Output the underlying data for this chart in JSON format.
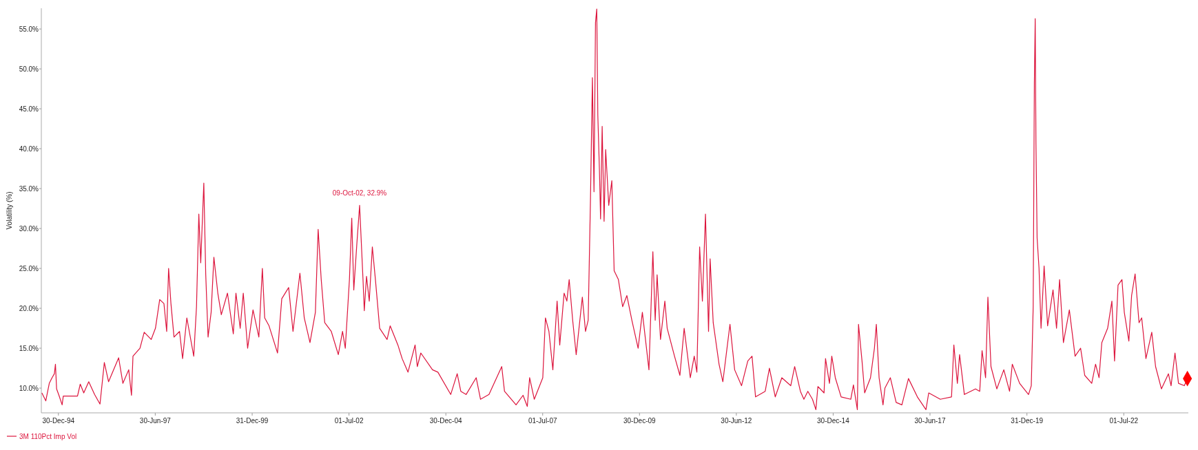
{
  "chart_data": {
    "type": "line",
    "ylabel": "Volatility (%)",
    "xlim": [
      "1994-07-22",
      "2024-03-01"
    ],
    "ylim": [
      6.9,
      57.6
    ],
    "yticks": [
      {
        "value": 10,
        "label": "10.0%"
      },
      {
        "value": 15,
        "label": "15.0%"
      },
      {
        "value": 20,
        "label": "20.0%"
      },
      {
        "value": 25,
        "label": "25.0%"
      },
      {
        "value": 30,
        "label": "30.0%"
      },
      {
        "value": 35,
        "label": "35.0%"
      },
      {
        "value": 40,
        "label": "40.0%"
      },
      {
        "value": 45,
        "label": "45.0%"
      },
      {
        "value": 50,
        "label": "50.0%"
      },
      {
        "value": 55,
        "label": "55.0%"
      }
    ],
    "xticks": [
      {
        "value": "1994-12-30",
        "label": "30-Dec-94"
      },
      {
        "value": "1997-06-30",
        "label": "30-Jun-97"
      },
      {
        "value": "1999-12-31",
        "label": "31-Dec-99"
      },
      {
        "value": "2002-07-01",
        "label": "01-Jul-02"
      },
      {
        "value": "2004-12-30",
        "label": "30-Dec-04"
      },
      {
        "value": "2007-07-01",
        "label": "01-Jul-07"
      },
      {
        "value": "2009-12-30",
        "label": "30-Dec-09"
      },
      {
        "value": "2012-06-30",
        "label": "30-Jun-12"
      },
      {
        "value": "2014-12-30",
        "label": "30-Dec-14"
      },
      {
        "value": "2017-06-30",
        "label": "30-Jun-17"
      },
      {
        "value": "2019-12-31",
        "label": "31-Dec-19"
      },
      {
        "value": "2022-07-01",
        "label": "01-Jul-22"
      }
    ],
    "grid": false,
    "legend": "bottom left",
    "line_style": "solid",
    "annotations": [
      {
        "text": "09-Oct-02, 32.9%",
        "x": "2002-10-09",
        "y": 32.9
      }
    ],
    "series": [
      {
        "name": "3M 110Pct Imp Vol",
        "color": "#dc143c",
        "marker": "none",
        "x": [
          "1994-07-27",
          "1994-09-02",
          "1994-09-20",
          "1994-10-05",
          "1994-10-31",
          "1994-11-22",
          "1994-12-02",
          "1994-12-13",
          "1995-01-04",
          "1995-02-03",
          "1995-02-14",
          "1995-06-28",
          "1995-07-24",
          "1995-08-26",
          "1995-10-12",
          "1995-12-06",
          "1996-01-26",
          "1996-03-07",
          "1996-04-16",
          "1996-07-20",
          "1996-08-29",
          "1996-10-23",
          "1996-11-18",
          "1996-12-02",
          "1997-02-06",
          "1997-03-18",
          "1997-05-23",
          "1997-07-02",
          "1997-08-11",
          "1997-09-20",
          "1997-10-16",
          "1997-11-03",
          "1997-11-25",
          "1997-12-24",
          "1998-02-14",
          "1998-03-15",
          "1998-04-24",
          "1998-06-28",
          "1998-07-24",
          "1998-08-15",
          "1998-09-02",
          "1998-10-01",
          "1998-10-19",
          "1998-11-10",
          "1998-12-09",
          "1999-01-04",
          "1999-02-10",
          "1999-03-15",
          "1999-05-12",
          "1999-07-06",
          "1999-07-31",
          "1999-09-09",
          "1999-10-08",
          "1999-11-18",
          "2000-01-08",
          "2000-03-03",
          "2000-04-05",
          "2000-04-27",
          "2000-06-07",
          "2000-08-26",
          "2000-10-05",
          "2000-12-09",
          "2001-01-19",
          "2001-03-25",
          "2001-05-05",
          "2001-06-28",
          "2001-08-18",
          "2001-09-13",
          "2001-10-12",
          "2001-11-14",
          "2002-01-15",
          "2002-03-22",
          "2002-05-01",
          "2002-05-27",
          "2002-07-05",
          "2002-07-27",
          "2002-08-15",
          "2002-09-13",
          "2002-10-09",
          "2002-11-10",
          "2002-11-22",
          "2002-12-13",
          "2003-01-08",
          "2003-02-06",
          "2003-03-07",
          "2003-04-16",
          "2003-06-25",
          "2003-07-24",
          "2003-10-05",
          "2003-11-14",
          "2004-01-08",
          "2004-03-15",
          "2004-04-05",
          "2004-05-08",
          "2004-08-26",
          "2004-10-16",
          "2005-02-14",
          "2005-04-16",
          "2005-05-20",
          "2005-07-09",
          "2005-10-12",
          "2005-11-22",
          "2006-02-10",
          "2006-06-10",
          "2006-07-06",
          "2006-10-23",
          "2006-12-28",
          "2007-02-06",
          "2007-02-28",
          "2007-04-13",
          "2007-07-02",
          "2007-07-27",
          "2007-08-29",
          "2007-10-05",
          "2007-11-14",
          "2007-12-09",
          "2008-01-19",
          "2008-02-14",
          "2008-03-07",
          "2008-04-09",
          "2008-05-12",
          "2008-07-09",
          "2008-08-08",
          "2008-09-02",
          "2008-09-24",
          "2008-10-12",
          "2008-10-27",
          "2008-11-10",
          "2008-11-22",
          "2008-12-02",
          "2008-12-17",
          "2008-12-28",
          "2009-01-12",
          "2009-01-30",
          "2009-02-14",
          "2009-03-15",
          "2009-04-13",
          "2009-05-05",
          "2009-06-14",
          "2009-07-24",
          "2009-09-02",
          "2009-10-19",
          "2009-12-17",
          "2010-01-26",
          "2010-03-29",
          "2010-05-05",
          "2010-05-27",
          "2010-06-14",
          "2010-07-16",
          "2010-08-26",
          "2010-09-17",
          "2010-11-25",
          "2011-01-15",
          "2011-02-24",
          "2011-04-23",
          "2011-05-30",
          "2011-06-24",
          "2011-07-20",
          "2011-08-15",
          "2011-09-13",
          "2011-10-12",
          "2011-10-27",
          "2011-11-25",
          "2012-01-19",
          "2012-02-24",
          "2012-05-01",
          "2012-06-14",
          "2012-08-18",
          "2012-10-16",
          "2012-11-25",
          "2012-12-28",
          "2013-03-29",
          "2013-05-08",
          "2013-07-02",
          "2013-09-02",
          "2013-11-25",
          "2014-01-01",
          "2014-02-24",
          "2014-03-29",
          "2014-05-05",
          "2014-06-18",
          "2014-07-20",
          "2014-08-08",
          "2014-10-05",
          "2014-10-19",
          "2014-11-25",
          "2014-12-17",
          "2015-01-19",
          "2015-03-15",
          "2015-06-14",
          "2015-07-09",
          "2015-08-15",
          "2015-08-26",
          "2015-09-28",
          "2015-10-23",
          "2015-12-17",
          "2016-01-23",
          "2016-02-10",
          "2016-03-07",
          "2016-04-13",
          "2016-05-01",
          "2016-06-21",
          "2016-08-15",
          "2016-10-08",
          "2016-12-09",
          "2017-03-03",
          "2017-05-23",
          "2017-06-18",
          "2017-10-05",
          "2018-01-19",
          "2018-02-10",
          "2018-03-15",
          "2018-04-05",
          "2018-05-20",
          "2018-09-02",
          "2018-10-12",
          "2018-11-03",
          "2018-12-06",
          "2018-12-28",
          "2019-01-26",
          "2019-03-22",
          "2019-05-27",
          "2019-07-20",
          "2019-08-15",
          "2019-10-23",
          "2020-01-15",
          "2020-02-10",
          "2020-02-28",
          "2020-03-10",
          "2020-03-18",
          "2020-03-25",
          "2020-04-05",
          "2020-04-23",
          "2020-05-12",
          "2020-06-10",
          "2020-07-13",
          "2020-09-02",
          "2020-10-05",
          "2020-11-03",
          "2020-12-09",
          "2021-02-03",
          "2021-03-29",
          "2021-05-20",
          "2021-06-28",
          "2021-09-02",
          "2021-10-08",
          "2021-11-10",
          "2021-12-06",
          "2022-01-30",
          "2022-03-11",
          "2022-04-05",
          "2022-05-08",
          "2022-06-14",
          "2022-07-06",
          "2022-08-18",
          "2022-09-13",
          "2022-10-16",
          "2022-11-22",
          "2022-12-17",
          "2023-01-26",
          "2023-03-22",
          "2023-04-27",
          "2023-06-21",
          "2023-08-26",
          "2023-09-20",
          "2023-10-27",
          "2023-11-29",
          "2024-01-23",
          "2024-02-21"
        ],
        "values": [
          9.4,
          8.4,
          9.6,
          10.6,
          11.3,
          11.8,
          13.0,
          9.9,
          9.1,
          7.9,
          9.0,
          9.0,
          10.5,
          9.4,
          10.8,
          9.2,
          8.0,
          13.2,
          10.8,
          13.8,
          10.6,
          12.3,
          9.1,
          14.0,
          15.0,
          17.0,
          16.1,
          17.5,
          21.1,
          20.6,
          17.1,
          25.0,
          20.6,
          16.4,
          17.1,
          13.7,
          18.8,
          14.0,
          20.2,
          31.8,
          25.7,
          35.7,
          24.3,
          16.4,
          19.5,
          26.4,
          21.9,
          19.2,
          21.9,
          16.8,
          21.9,
          17.5,
          21.9,
          15.0,
          19.8,
          16.4,
          25.0,
          18.8,
          17.8,
          14.4,
          21.2,
          22.6,
          17.1,
          24.4,
          18.8,
          15.7,
          19.5,
          29.9,
          23.6,
          18.2,
          17.1,
          14.2,
          17.1,
          15.0,
          23.6,
          31.3,
          22.3,
          28.1,
          32.9,
          23.6,
          19.7,
          24.0,
          20.9,
          27.7,
          23.6,
          17.5,
          16.1,
          17.8,
          15.4,
          13.7,
          12.0,
          15.4,
          12.7,
          14.4,
          12.3,
          12.0,
          9.2,
          11.8,
          9.6,
          9.2,
          11.3,
          8.6,
          9.2,
          12.7,
          9.6,
          7.9,
          9.1,
          7.7,
          11.3,
          8.6,
          11.3,
          18.8,
          17.1,
          12.3,
          20.9,
          15.4,
          21.9,
          20.9,
          23.6,
          18.5,
          14.2,
          21.4,
          17.1,
          18.5,
          33.9,
          48.9,
          34.6,
          55.8,
          57.5,
          44.2,
          37.4,
          31.2,
          42.8,
          30.9,
          39.9,
          32.9,
          36.0,
          24.7,
          23.6,
          20.2,
          21.6,
          18.5,
          15.0,
          19.5,
          12.3,
          27.1,
          18.5,
          24.2,
          16.1,
          20.9,
          17.5,
          14.0,
          11.6,
          17.5,
          11.3,
          14.0,
          12.0,
          27.7,
          20.9,
          31.8,
          17.1,
          26.2,
          18.2,
          13.0,
          10.8,
          18.0,
          12.3,
          10.3,
          13.4,
          14.0,
          8.9,
          9.6,
          12.5,
          8.9,
          11.3,
          10.3,
          12.7,
          9.6,
          8.6,
          9.6,
          8.6,
          7.3,
          10.2,
          9.4,
          13.7,
          10.6,
          14.0,
          11.3,
          8.9,
          8.6,
          10.4,
          7.3,
          18.0,
          13.4,
          9.4,
          11.3,
          15.0,
          18.0,
          11.3,
          7.9,
          10.0,
          11.3,
          8.2,
          7.9,
          11.2,
          8.9,
          7.3,
          9.4,
          8.6,
          8.9,
          15.4,
          10.6,
          14.2,
          9.2,
          9.9,
          9.6,
          14.7,
          11.3,
          21.4,
          12.7,
          9.9,
          12.3,
          9.6,
          13.0,
          10.6,
          9.2,
          10.3,
          20.2,
          48.3,
          56.3,
          40.8,
          28.8,
          25.0,
          17.5,
          25.3,
          17.8,
          22.3,
          17.5,
          23.6,
          15.7,
          19.8,
          14.0,
          15.0,
          11.6,
          10.6,
          13.0,
          11.3,
          15.7,
          17.5,
          20.9,
          13.4,
          22.9,
          23.6,
          19.5,
          15.9,
          21.6,
          24.3,
          18.2,
          18.8,
          13.7,
          17.0,
          12.7,
          9.9,
          11.8,
          10.3,
          14.4,
          10.6,
          10.3,
          11.2
        ]
      },
      {
        "type": "scatter",
        "color": "#ff0000",
        "marker": "diamond",
        "x": [
          "2024-02-21"
        ],
        "values": [
          11.2
        ]
      }
    ]
  }
}
